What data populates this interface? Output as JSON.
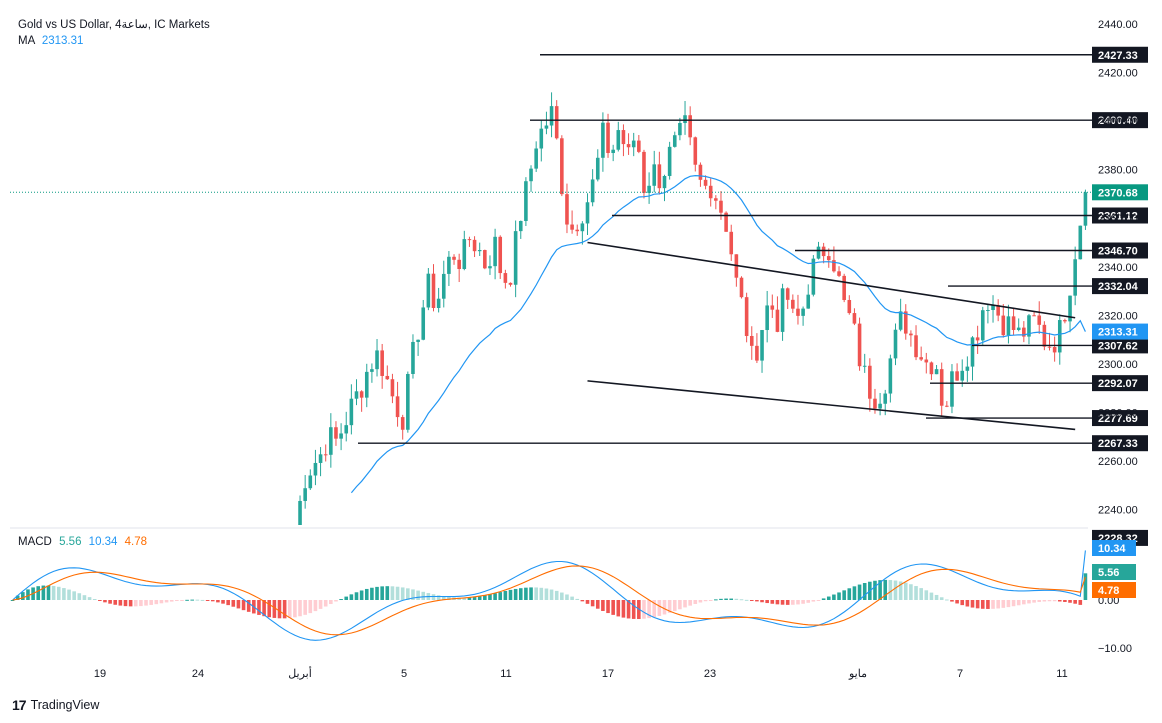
{
  "header": {
    "symbol_line": "Gold vs US Dollar, 4ساعة, IC Markets",
    "ma_label": "MA",
    "ma_value": "2313.31",
    "macd_label": "MACD",
    "macd_v1": "5.56",
    "macd_v2": "10.34",
    "macd_v3": "4.78"
  },
  "branding": {
    "name": "TradingView"
  },
  "colors": {
    "bull": "#26a69a",
    "bear": "#ef5350",
    "ma": "#2196f3",
    "signal": "#ff6d00",
    "hist_up_strong": "#26a69a",
    "hist_up_weak": "#b2dfdb",
    "hist_down_strong": "#ef5350",
    "hist_down_weak": "#ffcdd2",
    "current_price_bg": "#089981",
    "ma_badge_bg": "#2196f3",
    "level_bg": "#131722"
  },
  "chart_data": [
    {
      "type": "candlestick",
      "title": "Gold vs US Dollar, 4ساعة, IC Markets",
      "price_axis_ticks": [
        2440,
        2420,
        2400,
        2380,
        2360,
        2340,
        2320,
        2300,
        2280,
        2260,
        2240
      ],
      "price_axis_labels": [
        "2440.00",
        "2420.00",
        "2400.00",
        "2380.00",
        "2360.00",
        "2340.00",
        "2320.00",
        "2300.00",
        "2280.00",
        "2260.00",
        "2240.00"
      ],
      "ylim": [
        2228,
        2444
      ],
      "time_axis_labels": [
        "19",
        "24",
        "أبريل",
        "5",
        "11",
        "17",
        "23",
        "مايو",
        "7",
        "11"
      ],
      "horizontal_levels": [
        {
          "label": "2427.33",
          "value": 2427.33
        },
        {
          "label": "2400.40",
          "value": 2400.4
        },
        {
          "label": "2361.12",
          "value": 2361.12
        },
        {
          "label": "2346.70",
          "value": 2346.7
        },
        {
          "label": "2332.04",
          "value": 2332.04
        },
        {
          "label": "2307.62",
          "value": 2307.62
        },
        {
          "label": "2292.07",
          "value": 2292.07
        },
        {
          "label": "2277.69",
          "value": 2277.69
        },
        {
          "label": "2267.33",
          "value": 2267.33
        }
      ],
      "current_price": {
        "label": "2370.68",
        "value": 2370.68
      },
      "ma_last": {
        "label": "2313.31",
        "value": 2313.31
      },
      "axis_bottom_label": {
        "label": "2228.32",
        "value": 2228.32
      },
      "trendlines": [
        {
          "name": "upper",
          "from": {
            "bar": 0,
            "price": 2350
          },
          "to": {
            "bar": 95,
            "price": 2319
          }
        },
        {
          "name": "lower",
          "from": {
            "bar": 0,
            "price": 2293
          },
          "to": {
            "bar": 95,
            "price": 2273
          }
        }
      ],
      "candle_path": [
        2228,
        2252,
        2258,
        2262,
        2270,
        2268,
        2276,
        2284,
        2291,
        2300,
        2304,
        2294,
        2284,
        2278,
        2300,
        2318,
        2332,
        2324,
        2338,
        2346,
        2342,
        2352,
        2348,
        2340,
        2350,
        2334,
        2338,
        2360,
        2374,
        2392,
        2398,
        2404,
        2376,
        2354,
        2360,
        2366,
        2376,
        2394,
        2386,
        2398,
        2384,
        2396,
        2372,
        2380,
        2376,
        2386,
        2392,
        2398,
        2380,
        2372,
        2374,
        2366,
        2356,
        2334,
        2320,
        2300,
        2314,
        2326,
        2318,
        2330,
        2316,
        2322,
        2338,
        2344,
        2350,
        2340,
        2324,
        2316,
        2300,
        2290,
        2286,
        2294,
        2308,
        2320,
        2312,
        2306,
        2300,
        2302,
        2280,
        2294,
        2300,
        2306,
        2314,
        2328,
        2324,
        2318,
        2316,
        2312,
        2314,
        2318,
        2310,
        2308,
        2314,
        2330,
        2352,
        2371
      ],
      "ma_series_start_price": 2228,
      "start_bar_index": 55,
      "bars_total": 210
    },
    {
      "type": "macd",
      "series": [
        {
          "name": "MACD",
          "last": 5.56
        },
        {
          "name": "Signal",
          "last": 4.78
        },
        {
          "name": "Histogram",
          "last": 10.34
        }
      ],
      "axis_ticks": [
        0,
        -10
      ],
      "axis_labels": [
        "0.00",
        "−10.00"
      ],
      "ylim": [
        -12,
        12
      ]
    }
  ]
}
